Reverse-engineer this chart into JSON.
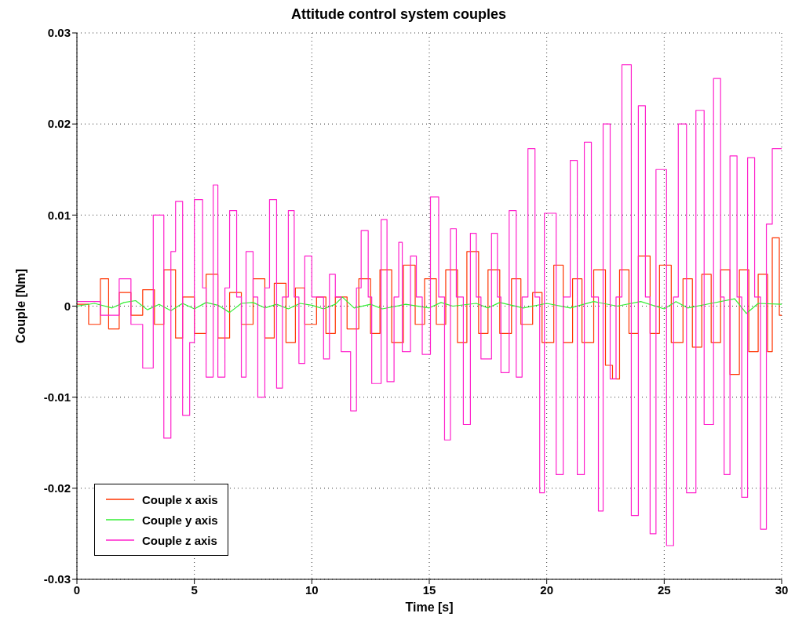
{
  "chart_data": {
    "type": "step",
    "title": "Attitude control system couples",
    "xlabel": "Time [s]",
    "ylabel": "Couple [Nm]",
    "xlim": [
      0,
      30
    ],
    "xticks": [
      0,
      5,
      10,
      15,
      20,
      25,
      30
    ],
    "ylim": [
      -0.03,
      0.03
    ],
    "yticks": [
      -0.03,
      -0.02,
      -0.01,
      0,
      0.01,
      0.02,
      0.03
    ],
    "grid": true,
    "legend": "bottom left",
    "line_style": "solid",
    "series": [
      {
        "name": "Couple x axis",
        "color": "#ff3300",
        "x": [
          0,
          0.5,
          1.0,
          1.35,
          1.8,
          2.3,
          2.8,
          3.3,
          3.7,
          4.2,
          4.5,
          5.0,
          5.5,
          6.0,
          6.5,
          7.0,
          7.5,
          8.0,
          8.4,
          8.9,
          9.3,
          9.7,
          10.2,
          10.6,
          11.0,
          11.5,
          12.0,
          12.5,
          12.9,
          13.4,
          13.9,
          14.4,
          14.8,
          15.3,
          15.7,
          16.2,
          16.6,
          17.1,
          17.5,
          18.0,
          18.5,
          18.9,
          19.4,
          19.8,
          20.3,
          20.7,
          21.1,
          21.5,
          22.0,
          22.5,
          22.8,
          23.1,
          23.5,
          23.9,
          24.4,
          24.8,
          25.3,
          25.8,
          26.2,
          26.6,
          27.0,
          27.4,
          27.8,
          28.2,
          28.6,
          29.0,
          29.4,
          29.6,
          29.9,
          30
        ],
        "values": [
          0.0002,
          -0.002,
          0.003,
          -0.0025,
          0.0015,
          -0.001,
          0.0018,
          -0.002,
          0.004,
          -0.0035,
          0.001,
          -0.003,
          0.0035,
          -0.0035,
          0.0015,
          -0.002,
          0.003,
          -0.0035,
          0.0025,
          -0.004,
          0.002,
          -0.002,
          0.001,
          -0.003,
          0.001,
          -0.0025,
          0.003,
          -0.003,
          0.004,
          -0.004,
          0.0045,
          -0.002,
          0.003,
          -0.002,
          0.004,
          -0.004,
          0.006,
          -0.003,
          0.004,
          -0.003,
          0.003,
          -0.002,
          0.0015,
          -0.004,
          0.0045,
          -0.004,
          0.003,
          -0.004,
          0.004,
          -0.0065,
          -0.008,
          0.004,
          -0.003,
          0.0055,
          -0.003,
          0.0045,
          -0.004,
          0.003,
          -0.0045,
          0.0035,
          -0.004,
          0.004,
          -0.0075,
          0.004,
          -0.005,
          0.0035,
          -0.005,
          0.0075,
          -0.001,
          -0.001
        ]
      },
      {
        "name": "Couple y axis",
        "color": "#33ee33",
        "type": "line",
        "x": [
          0,
          0.75,
          1.5,
          2.0,
          2.5,
          3.0,
          3.5,
          4.0,
          4.5,
          5.0,
          5.5,
          6.0,
          6.5,
          7.0,
          7.5,
          8.0,
          8.5,
          9.0,
          9.5,
          10.0,
          10.5,
          11.0,
          11.3,
          11.8,
          12.5,
          13.0,
          14.0,
          15.0,
          15.5,
          16.0,
          17.0,
          17.5,
          18.0,
          19.0,
          20.0,
          21.0,
          22.0,
          23.0,
          24.0,
          25.0,
          25.5,
          26.0,
          27.0,
          28.0,
          28.5,
          29.0,
          30
        ],
        "values": [
          0,
          0.0003,
          -0.0002,
          0.0004,
          0.0006,
          -0.0004,
          0.0002,
          -0.0005,
          0.0003,
          -0.0003,
          0.0004,
          0.0001,
          -0.0007,
          0.0003,
          0.0004,
          -0.0002,
          0.0002,
          -0.0003,
          0.0003,
          0.0001,
          -0.0003,
          0.0002,
          0.001,
          -0.0002,
          0.0002,
          -0.0003,
          0.0002,
          -0.0002,
          0.0004,
          0,
          0.0003,
          -0.0002,
          0.0004,
          -0.0002,
          0.0003,
          -0.0002,
          0.0005,
          0,
          0.0005,
          -0.0003,
          0.0005,
          -0.0002,
          0.0003,
          0.0008,
          -0.0008,
          0.0003,
          0.0002
        ]
      },
      {
        "name": "Couple z axis",
        "color": "#ff22cc",
        "x": [
          0,
          1.0,
          1.8,
          2.3,
          2.8,
          3.25,
          3.7,
          4.0,
          4.2,
          4.5,
          4.8,
          5.0,
          5.35,
          5.5,
          5.8,
          6.0,
          6.3,
          6.5,
          6.8,
          7.0,
          7.2,
          7.5,
          7.7,
          8.0,
          8.2,
          8.5,
          8.75,
          9.0,
          9.25,
          9.45,
          9.7,
          10.0,
          10.5,
          10.75,
          11.0,
          11.25,
          11.65,
          11.9,
          12.1,
          12.4,
          12.55,
          12.95,
          13.2,
          13.5,
          13.7,
          13.85,
          14.2,
          14.45,
          14.7,
          15.05,
          15.4,
          15.65,
          15.9,
          16.15,
          16.45,
          16.75,
          17.0,
          17.2,
          17.65,
          17.9,
          18.05,
          18.4,
          18.7,
          18.95,
          19.2,
          19.5,
          19.7,
          19.9,
          20.4,
          20.7,
          21.0,
          21.3,
          21.6,
          21.9,
          22.2,
          22.4,
          22.7,
          22.95,
          23.2,
          23.6,
          23.9,
          24.2,
          24.4,
          24.65,
          25.1,
          25.4,
          25.6,
          25.95,
          26.35,
          26.7,
          27.1,
          27.4,
          27.55,
          27.8,
          28.1,
          28.3,
          28.55,
          28.85,
          29.1,
          29.35,
          29.6,
          30
        ],
        "values": [
          0.0005,
          -0.001,
          0.003,
          -0.002,
          -0.0068,
          0.01,
          -0.0145,
          0.006,
          0.0115,
          -0.012,
          -0.004,
          0.0117,
          0.002,
          -0.0078,
          0.0133,
          -0.0078,
          0.002,
          0.0105,
          0.001,
          -0.0078,
          0.006,
          0.001,
          -0.01,
          0.002,
          0.0117,
          -0.009,
          0.001,
          0.0105,
          0.001,
          -0.0063,
          0.0055,
          0.001,
          -0.0058,
          0.0035,
          0.001,
          -0.005,
          -0.0115,
          0.002,
          0.0083,
          0.001,
          -0.0085,
          0.0095,
          -0.0083,
          0.001,
          0.007,
          -0.005,
          0.0055,
          0.001,
          -0.0053,
          0.012,
          0.001,
          -0.0147,
          0.0085,
          0.001,
          -0.013,
          0.008,
          0.001,
          -0.0058,
          0.008,
          0.001,
          -0.0073,
          0.0105,
          -0.0078,
          0.001,
          0.0173,
          0.001,
          -0.0205,
          0.0102,
          -0.0185,
          0.001,
          0.016,
          -0.0185,
          0.018,
          0.001,
          -0.0225,
          0.02,
          -0.008,
          0.001,
          0.0265,
          -0.023,
          0.022,
          0.001,
          -0.025,
          0.015,
          -0.0263,
          0.001,
          0.02,
          -0.0205,
          0.0215,
          -0.013,
          0.025,
          0.001,
          -0.0185,
          0.0165,
          0.001,
          -0.021,
          0.0163,
          0.001,
          -0.0245,
          0.009,
          0.0173,
          0.0173
        ]
      }
    ]
  }
}
